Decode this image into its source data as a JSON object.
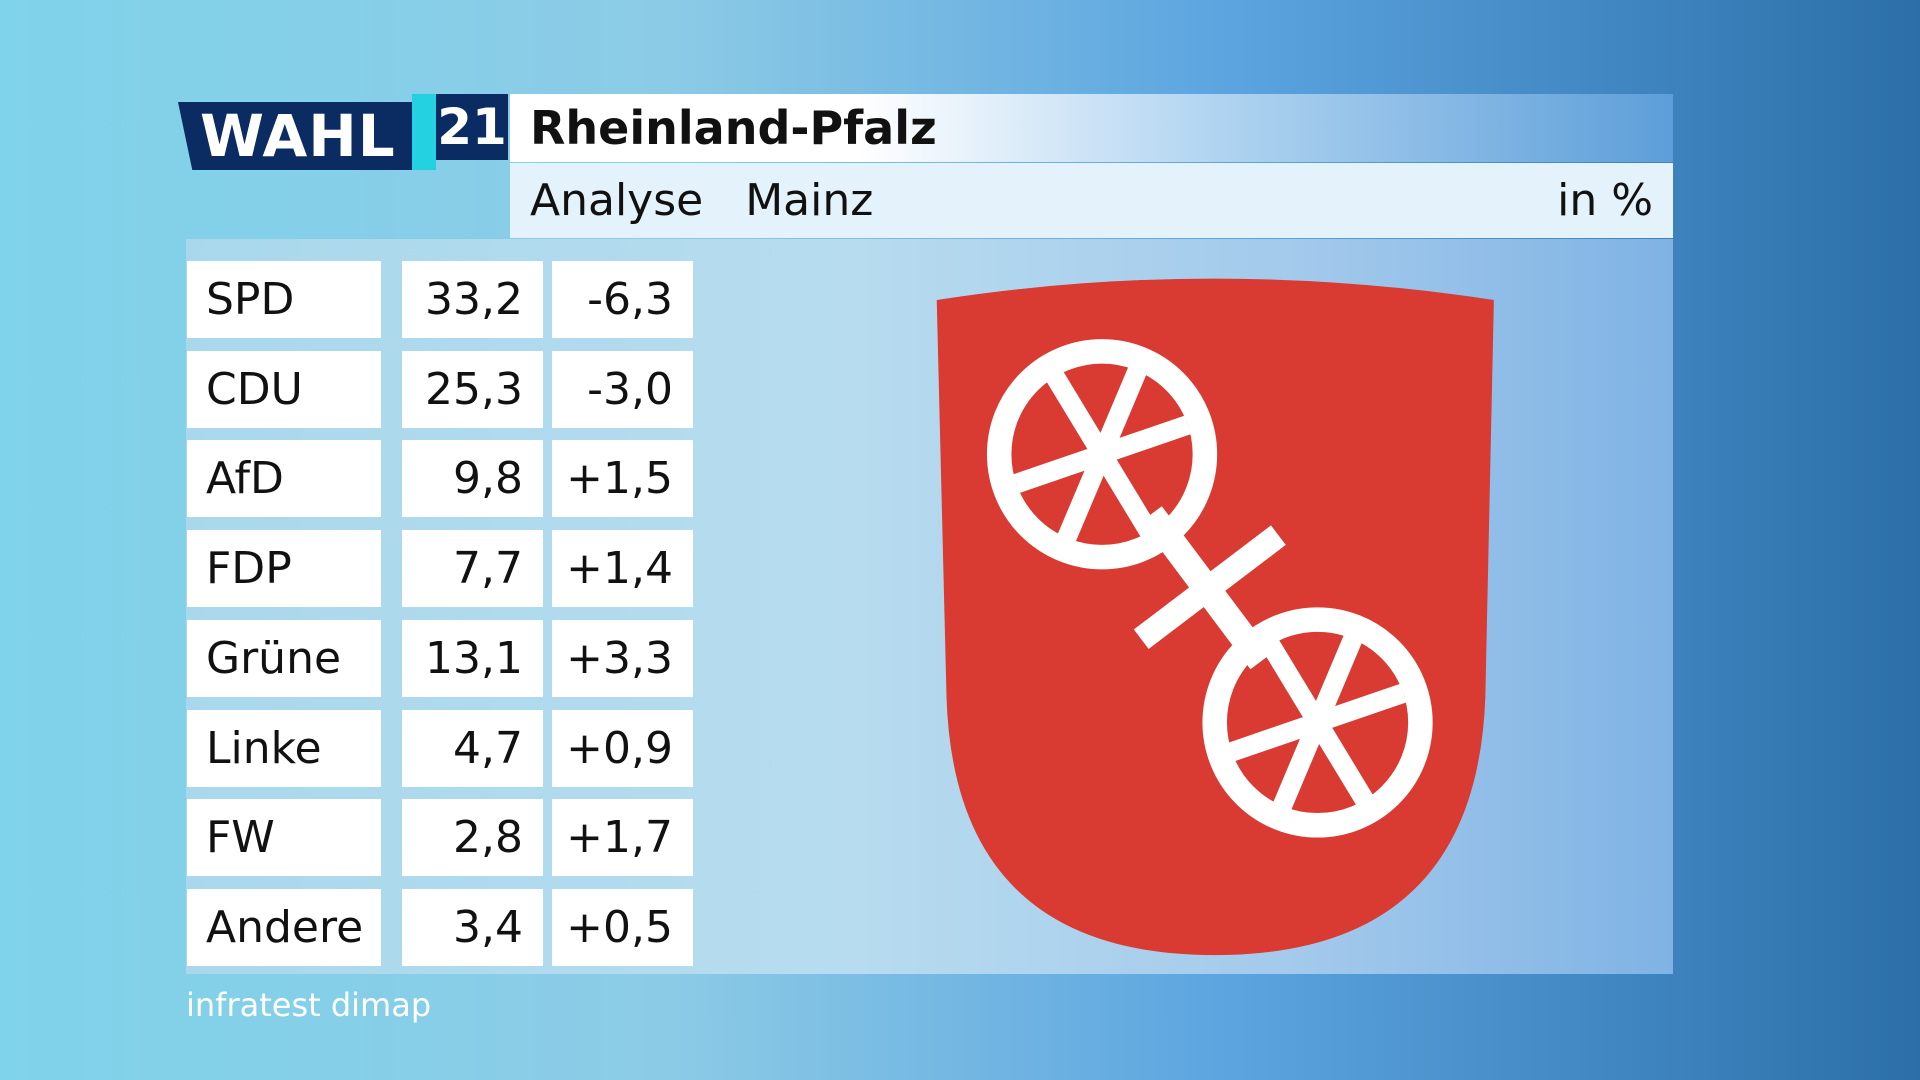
{
  "header": {
    "logo": "WAHL",
    "year": "21",
    "title": "Rheinland-Pfalz",
    "subtitle": "Analyse",
    "place": "Mainz",
    "unit": "in %"
  },
  "table": {
    "rows": [
      [
        "SPD",
        "33,2",
        "-6,3"
      ],
      [
        "CDU",
        "25,3",
        "-3,0"
      ],
      [
        "AfD",
        "9,8",
        "+1,5"
      ],
      [
        "FDP",
        "7,7",
        "+1,4"
      ],
      [
        "Grüne",
        "13,1",
        "+3,3"
      ],
      [
        "Linke",
        "4,7",
        "+0,9"
      ],
      [
        "FW",
        "2,8",
        "+1,7"
      ],
      [
        "Andere",
        "3,4",
        "+0,5"
      ]
    ]
  },
  "source": "infratest dimap"
}
